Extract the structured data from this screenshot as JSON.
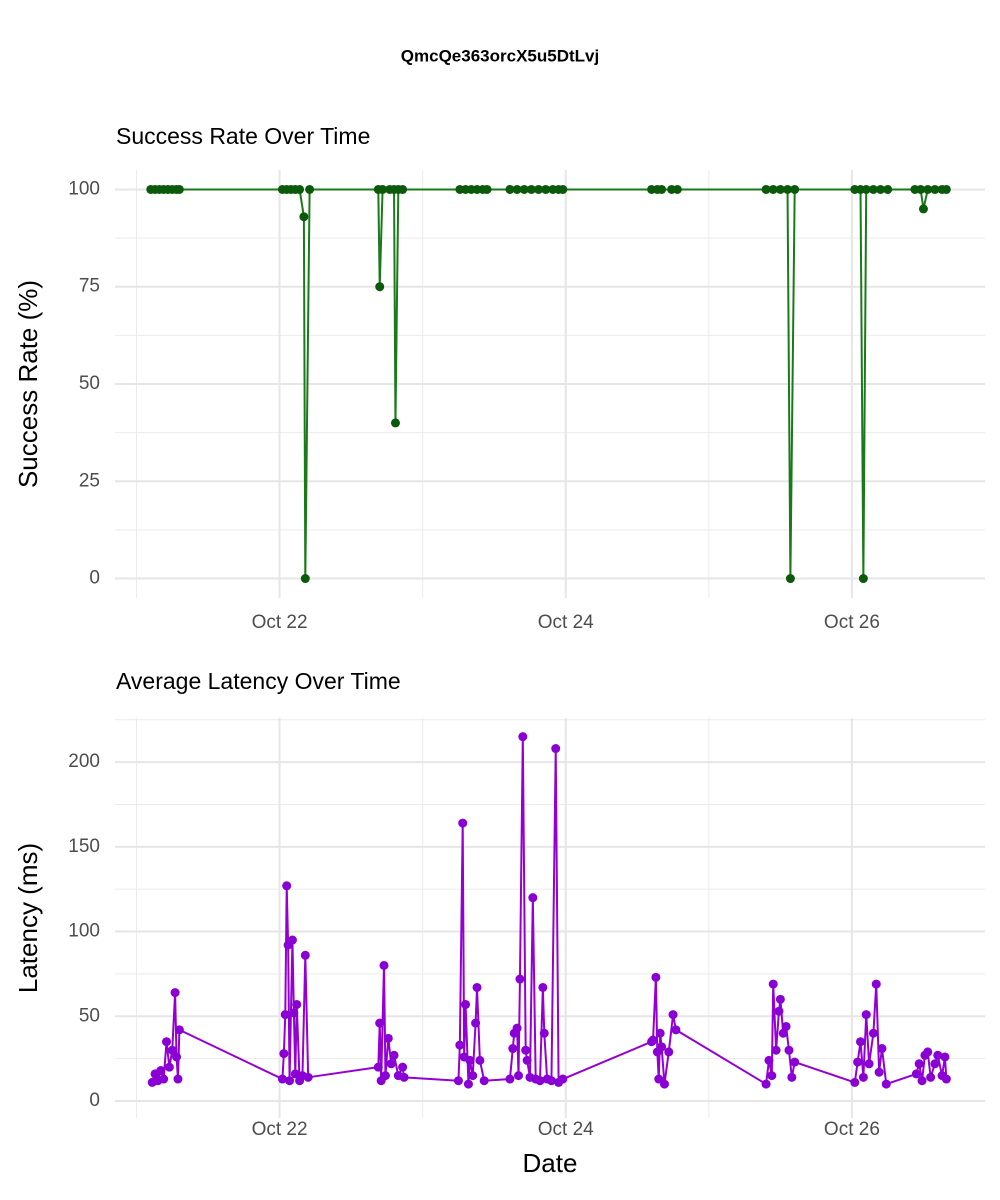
{
  "title": "QmcQe363orcX5u5DtLvj",
  "chart_data": [
    {
      "type": "line",
      "title": "Success Rate Over Time",
      "y_label": "Success Rate (%)",
      "color": "#1a7a1a",
      "point_color": "#0b5a0b",
      "grid": true,
      "xlim": [
        20.85,
        26.93
      ],
      "xticks": [
        {
          "value": 22,
          "label": "Oct 22"
        },
        {
          "value": 24,
          "label": "Oct 24"
        },
        {
          "value": 26,
          "label": "Oct 26"
        }
      ],
      "ylim": [
        -5,
        105
      ],
      "yticks": [
        0,
        25,
        50,
        75,
        100
      ],
      "x": [
        21.1,
        21.13,
        21.16,
        21.19,
        21.22,
        21.25,
        21.28,
        21.3,
        22.02,
        22.05,
        22.08,
        22.11,
        22.14,
        22.17,
        22.18,
        22.21,
        22.69,
        22.7,
        22.72,
        22.77,
        22.8,
        22.81,
        22.83,
        22.86,
        23.26,
        23.3,
        23.34,
        23.38,
        23.42,
        23.45,
        23.61,
        23.66,
        23.71,
        23.76,
        23.81,
        23.86,
        23.91,
        23.95,
        23.98,
        24.6,
        24.64,
        24.67,
        24.74,
        24.78,
        25.4,
        25.45,
        25.5,
        25.55,
        25.57,
        25.6,
        26.02,
        26.06,
        26.08,
        26.1,
        26.15,
        26.2,
        26.25,
        26.44,
        26.48,
        26.5,
        26.53,
        26.58,
        26.63,
        26.66
      ],
      "values": [
        100,
        100,
        100,
        100,
        100,
        100,
        100,
        100,
        100,
        100,
        100,
        100,
        100,
        93,
        0,
        100,
        100,
        75,
        100,
        100,
        100,
        40,
        100,
        100,
        100,
        100,
        100,
        100,
        100,
        100,
        100,
        100,
        100,
        100,
        100,
        100,
        100,
        100,
        100,
        100,
        100,
        100,
        100,
        100,
        100,
        100,
        100,
        100,
        0,
        100,
        100,
        100,
        0,
        100,
        100,
        100,
        100,
        100,
        100,
        95,
        100,
        100,
        100,
        100
      ]
    },
    {
      "type": "line",
      "title": "Average Latency Over Time",
      "y_label": "Latency (ms)",
      "x_label": "Date",
      "color": "#9400d3",
      "point_color": "#8a00d4",
      "grid": true,
      "xlim": [
        20.85,
        26.93
      ],
      "xticks": [
        {
          "value": 22,
          "label": "Oct 22"
        },
        {
          "value": 24,
          "label": "Oct 24"
        },
        {
          "value": 26,
          "label": "Oct 26"
        }
      ],
      "ylim": [
        -10,
        226
      ],
      "yticks": [
        0,
        50,
        100,
        150,
        200
      ],
      "x": [
        21.11,
        21.13,
        21.15,
        21.17,
        21.19,
        21.21,
        21.23,
        21.25,
        21.27,
        21.28,
        21.29,
        21.3,
        22.02,
        22.03,
        22.04,
        22.05,
        22.06,
        22.07,
        22.09,
        22.1,
        22.11,
        22.12,
        22.14,
        22.16,
        22.18,
        22.2,
        22.69,
        22.7,
        22.71,
        22.73,
        22.74,
        22.76,
        22.78,
        22.8,
        22.83,
        22.86,
        22.87,
        23.25,
        23.26,
        23.28,
        23.29,
        23.3,
        23.32,
        23.33,
        23.35,
        23.37,
        23.38,
        23.4,
        23.43,
        23.61,
        23.63,
        23.64,
        23.66,
        23.67,
        23.68,
        23.7,
        23.72,
        23.73,
        23.75,
        23.77,
        23.79,
        23.82,
        23.84,
        23.85,
        23.87,
        23.9,
        23.93,
        23.95,
        23.98,
        24.6,
        24.61,
        24.63,
        24.64,
        24.65,
        24.66,
        24.67,
        24.69,
        24.72,
        24.75,
        24.77,
        25.4,
        25.42,
        25.44,
        25.45,
        25.47,
        25.49,
        25.5,
        25.52,
        25.54,
        25.56,
        25.58,
        25.6,
        26.02,
        26.04,
        26.06,
        26.08,
        26.1,
        26.12,
        26.15,
        26.17,
        26.19,
        26.21,
        26.24,
        26.45,
        26.47,
        26.49,
        26.51,
        26.53,
        26.55,
        26.58,
        26.6,
        26.63,
        26.65,
        26.66
      ],
      "values": [
        11,
        16,
        12,
        18,
        13,
        35,
        20,
        30,
        64,
        26,
        13,
        42,
        13,
        28,
        51,
        127,
        92,
        12,
        95,
        52,
        16,
        57,
        12,
        15,
        86,
        14,
        20,
        46,
        12,
        80,
        15,
        37,
        22,
        27,
        15,
        20,
        14,
        12,
        33,
        164,
        26,
        57,
        10,
        24,
        15,
        46,
        67,
        24,
        12,
        13,
        31,
        40,
        43,
        15,
        72,
        215,
        30,
        24,
        14,
        120,
        13,
        12,
        67,
        40,
        13,
        12,
        208,
        11,
        13,
        35,
        36,
        73,
        29,
        13,
        40,
        32,
        10,
        29,
        51,
        42,
        10,
        24,
        15,
        69,
        30,
        53,
        60,
        40,
        44,
        30,
        14,
        23,
        11,
        23,
        35,
        14,
        51,
        22,
        40,
        69,
        17,
        31,
        10,
        16,
        22,
        12,
        27,
        29,
        14,
        22,
        27,
        15,
        26,
        13
      ]
    }
  ]
}
